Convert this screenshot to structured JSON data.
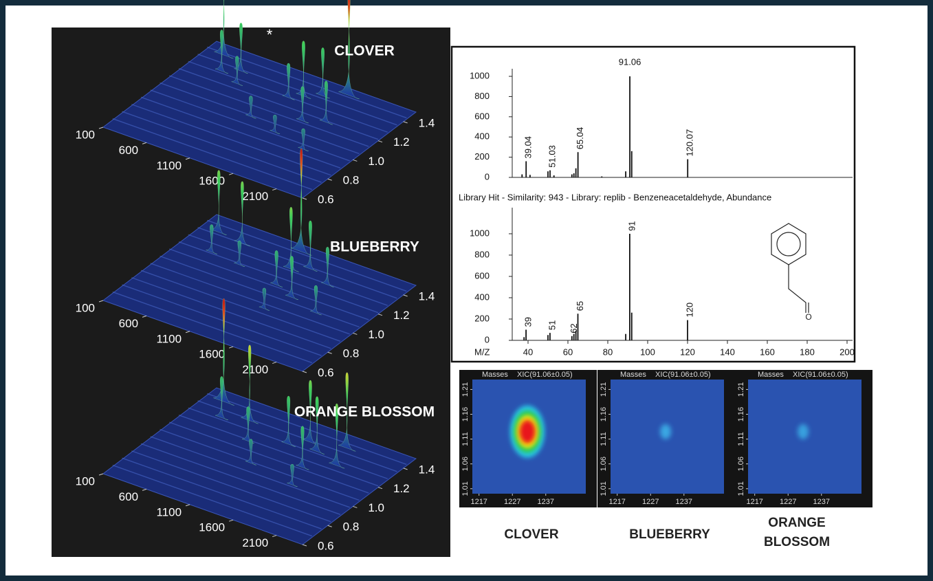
{
  "chart_data": [
    {
      "type": "surface",
      "title": "CLOVER",
      "annotation": "*",
      "xlim": [
        100,
        2400
      ],
      "xticks": [
        100,
        600,
        1100,
        1600,
        2100
      ],
      "ylim": [
        0.6,
        1.5
      ],
      "yticks": [
        0.6,
        0.8,
        {
          "value": 1,
          "label": "1.0"
        },
        1.2,
        1.4
      ]
    },
    {
      "type": "surface",
      "title": "BLUEBERRY",
      "xlim": [
        100,
        2400
      ],
      "xticks": [
        100,
        600,
        1100,
        1600,
        2100
      ],
      "ylim": [
        0.6,
        1.5
      ],
      "yticks": [
        0.6,
        0.8,
        {
          "value": 1,
          "label": "1.0"
        },
        1.2,
        1.4
      ]
    },
    {
      "type": "surface",
      "title": "ORANGE BLOSSOM",
      "xlim": [
        100,
        2400
      ],
      "xticks": [
        100,
        600,
        1100,
        1600,
        2100
      ],
      "ylim": [
        0.6,
        1.5
      ],
      "yticks": [
        0.6,
        0.8,
        {
          "value": 1,
          "label": "1.0"
        },
        1.2,
        1.4
      ]
    },
    {
      "type": "spectrum",
      "xlim": [
        25,
        205
      ],
      "ylim": [
        0,
        1075
      ],
      "yticks": [
        0,
        200,
        400,
        600,
        800,
        1000
      ],
      "peaks": {
        "x": [
          39.04,
          51.03,
          65.04,
          91.06,
          120.07
        ],
        "values": [
          160,
          70,
          250,
          1000,
          180
        ]
      },
      "minor": {
        "x": [
          37,
          41,
          50,
          53,
          62,
          63,
          64,
          77,
          89,
          92
        ],
        "values": [
          30,
          25,
          60,
          20,
          30,
          40,
          90,
          10,
          60,
          260
        ]
      }
    },
    {
      "type": "spectrum",
      "title": "Library Hit - Similarity: 943 - Library: replib - Benzeneacetaldehyde, Abundance",
      "xlabel": "M/Z",
      "annotation": "O",
      "xlim": [
        25,
        205
      ],
      "xticks": [
        40,
        60,
        80,
        100,
        120,
        140,
        160,
        180,
        200
      ],
      "ylim": [
        0,
        1245
      ],
      "yticks": [
        0,
        200,
        400,
        600,
        800,
        1000
      ],
      "peaks": {
        "x": [
          39,
          51,
          62,
          65,
          91,
          120
        ],
        "values": [
          100,
          70,
          40,
          250,
          1000,
          190
        ]
      },
      "minor": {
        "x": [
          38,
          50,
          63,
          64,
          89,
          92
        ],
        "values": [
          30,
          50,
          60,
          90,
          60,
          260
        ]
      }
    },
    {
      "type": "heatmap",
      "header": "Masses",
      "title": "XIC(91.06±0.05)",
      "caption": "CLOVER",
      "xlim": [
        1215,
        1249
      ],
      "xticks": [
        1217,
        1227,
        1237
      ],
      "ylim": [
        1.0,
        1.23
      ],
      "yticks": [
        1.01,
        1.06,
        1.11,
        1.16,
        1.21
      ],
      "spot": {
        "x": 1231.5,
        "y": 1.125
      },
      "colors": [
        "#e8151a",
        "#f6ea10",
        "#22c85a",
        "#2cc8e8"
      ]
    },
    {
      "type": "heatmap",
      "header": "Masses",
      "title": "XIC(91.06±0.05)",
      "caption": "BLUEBERRY",
      "xlim": [
        1215,
        1249
      ],
      "xticks": [
        1217,
        1227,
        1237
      ],
      "ylim": [
        1.0,
        1.23
      ],
      "yticks": [
        1.01,
        1.06,
        1.11,
        1.16,
        1.21
      ],
      "spot": {
        "x": 1231.5,
        "y": 1.125
      },
      "colors": [
        "#3cb6ec"
      ]
    },
    {
      "type": "heatmap",
      "header": "Masses",
      "title": "XIC(91.06±0.05)",
      "caption": "ORANGE BLOSSOM",
      "xlim": [
        1215,
        1249
      ],
      "xticks": [
        1217,
        1227,
        1237
      ],
      "ylim": [
        1.0,
        1.23
      ],
      "yticks": [
        1.01,
        1.06,
        1.11,
        1.16,
        1.21
      ],
      "spot": {
        "x": 1231.5,
        "y": 1.125
      },
      "colors": [
        "#3aaee6"
      ]
    }
  ]
}
